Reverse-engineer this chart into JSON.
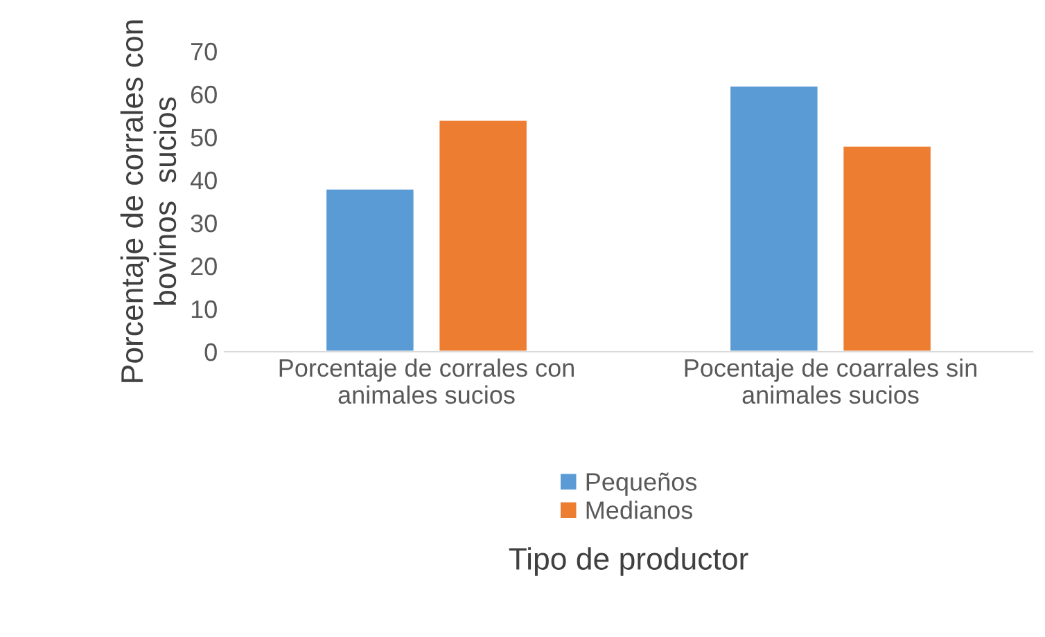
{
  "chart_data": {
    "type": "bar",
    "ylabel": "Porcentaje de corrales con bovinos  sucios",
    "xlabel": "Tipo de productor",
    "categories": [
      "Porcentaje de corrales con\nanimales sucios",
      "Pocentaje de coarrales sin\nanimales sucios"
    ],
    "series": [
      {
        "name": "Pequeños",
        "color": "#5b9bd5",
        "values": [
          38,
          62
        ]
      },
      {
        "name": "Medianos",
        "color": "#ed7d31",
        "values": [
          54,
          48
        ]
      }
    ],
    "ylim": [
      0,
      70
    ],
    "yticks": [
      0,
      10,
      20,
      30,
      40,
      50,
      60,
      70
    ],
    "grid": false,
    "legend": "bottom"
  }
}
